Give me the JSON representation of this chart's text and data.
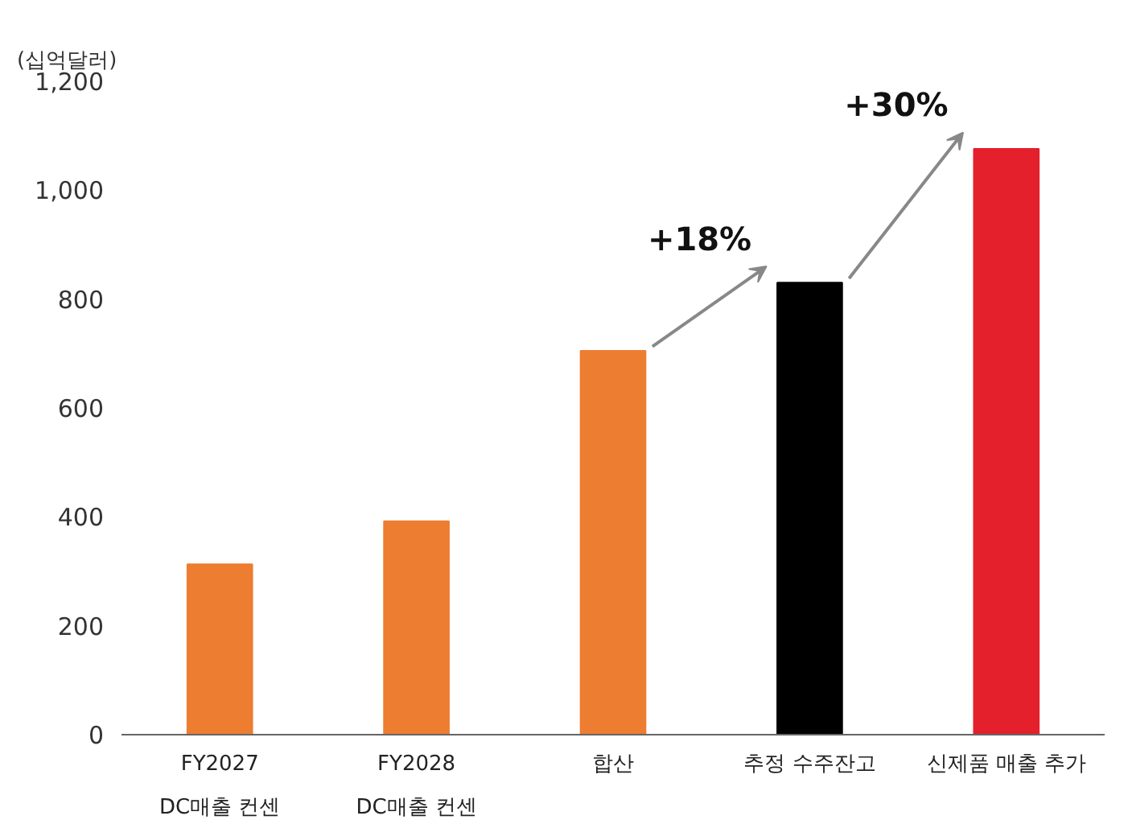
{
  "chart_data": {
    "type": "bar",
    "ylabel": "(십억달러)",
    "categories": [
      "FY2027\nDC매출 컨센",
      "FY2028\nDC매출 컨센",
      "합산",
      "추정 수주잔고",
      "신제품 매출 추가"
    ],
    "values": [
      313,
      392,
      705,
      830,
      1076
    ],
    "colors": [
      "#ed7d31",
      "#ed7d31",
      "#ed7d31",
      "#000000",
      "#e3202b"
    ],
    "ylim": [
      0,
      1200
    ],
    "yticks": [
      0,
      200,
      400,
      600,
      800,
      {
        "value": 1000,
        "label": "1,000"
      },
      {
        "value": 1200,
        "label": "1,200"
      }
    ],
    "grid": false,
    "annotations": [
      {
        "text": "+18%",
        "x": "추정 수주잔고",
        "y": 830
      },
      {
        "text": "+30%",
        "x": "신제품 매출 추가",
        "y": 1076
      }
    ]
  }
}
